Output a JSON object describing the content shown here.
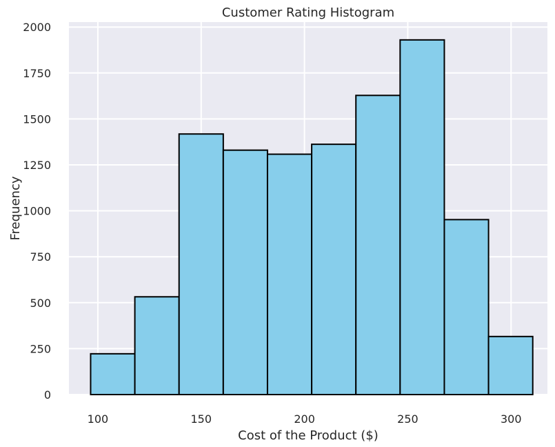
{
  "chart_data": {
    "type": "bar",
    "title": "Customer Rating Histogram",
    "xlabel": "Cost of the Product ($)",
    "ylabel": "Frequency",
    "bins": [
      {
        "start": 96.5,
        "end": 117.9,
        "value": 222
      },
      {
        "start": 117.9,
        "end": 139.3,
        "value": 532
      },
      {
        "start": 139.3,
        "end": 160.7,
        "value": 1418
      },
      {
        "start": 160.7,
        "end": 182.1,
        "value": 1330
      },
      {
        "start": 182.1,
        "end": 203.5,
        "value": 1308
      },
      {
        "start": 203.5,
        "end": 224.9,
        "value": 1362
      },
      {
        "start": 224.9,
        "end": 246.3,
        "value": 1628
      },
      {
        "start": 246.3,
        "end": 267.7,
        "value": 1930
      },
      {
        "start": 267.7,
        "end": 289.1,
        "value": 952
      },
      {
        "start": 289.1,
        "end": 310.5,
        "value": 316
      }
    ],
    "xticks": [
      100,
      150,
      200,
      250,
      300
    ],
    "yticks": [
      0,
      250,
      500,
      750,
      1000,
      1250,
      1500,
      1750,
      2000
    ],
    "xlim": [
      86,
      317.6
    ],
    "ylim": [
      0,
      2027
    ],
    "grid": true,
    "colors": {
      "bar_fill": "#87ceeb",
      "bar_edge": "#000000",
      "plot_background": "#eaeaf2",
      "grid": "#ffffff"
    }
  }
}
